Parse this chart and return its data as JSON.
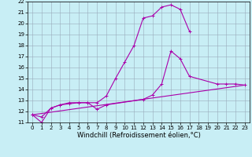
{
  "xlabel": "Windchill (Refroidissement éolien,°C)",
  "xlim": [
    -0.5,
    23.5
  ],
  "ylim": [
    11,
    22
  ],
  "xticks": [
    0,
    1,
    2,
    3,
    4,
    5,
    6,
    7,
    8,
    9,
    10,
    11,
    12,
    13,
    14,
    15,
    16,
    17,
    18,
    19,
    20,
    21,
    22,
    23
  ],
  "yticks": [
    11,
    12,
    13,
    14,
    15,
    16,
    17,
    18,
    19,
    20,
    21,
    22
  ],
  "bg_color": "#c8eef5",
  "grid_color": "#99aabb",
  "line_color": "#aa00aa",
  "line1_x": [
    0,
    1,
    2,
    3,
    4,
    5,
    6,
    7,
    8,
    9,
    10,
    11,
    12,
    13,
    14,
    15,
    16,
    17
  ],
  "line1_y": [
    11.7,
    11.5,
    12.3,
    12.6,
    12.7,
    12.8,
    12.8,
    12.8,
    13.4,
    15.0,
    16.5,
    18.0,
    20.5,
    20.7,
    21.5,
    21.7,
    21.3,
    19.3
  ],
  "line2_x": [
    0,
    1,
    2,
    3,
    4,
    5,
    6,
    7,
    8,
    12,
    13,
    14,
    15,
    16,
    17,
    20,
    21,
    22,
    23
  ],
  "line2_y": [
    11.7,
    11.0,
    12.3,
    12.6,
    12.8,
    12.8,
    12.8,
    12.2,
    12.6,
    13.1,
    13.5,
    14.5,
    17.5,
    16.8,
    15.2,
    14.5,
    14.5,
    14.5,
    14.4
  ],
  "line3_x": [
    0,
    23
  ],
  "line3_y": [
    11.7,
    14.4
  ],
  "tick_fontsize": 5.0,
  "label_fontsize": 6.0,
  "linewidth": 0.8,
  "markersize": 3.5
}
